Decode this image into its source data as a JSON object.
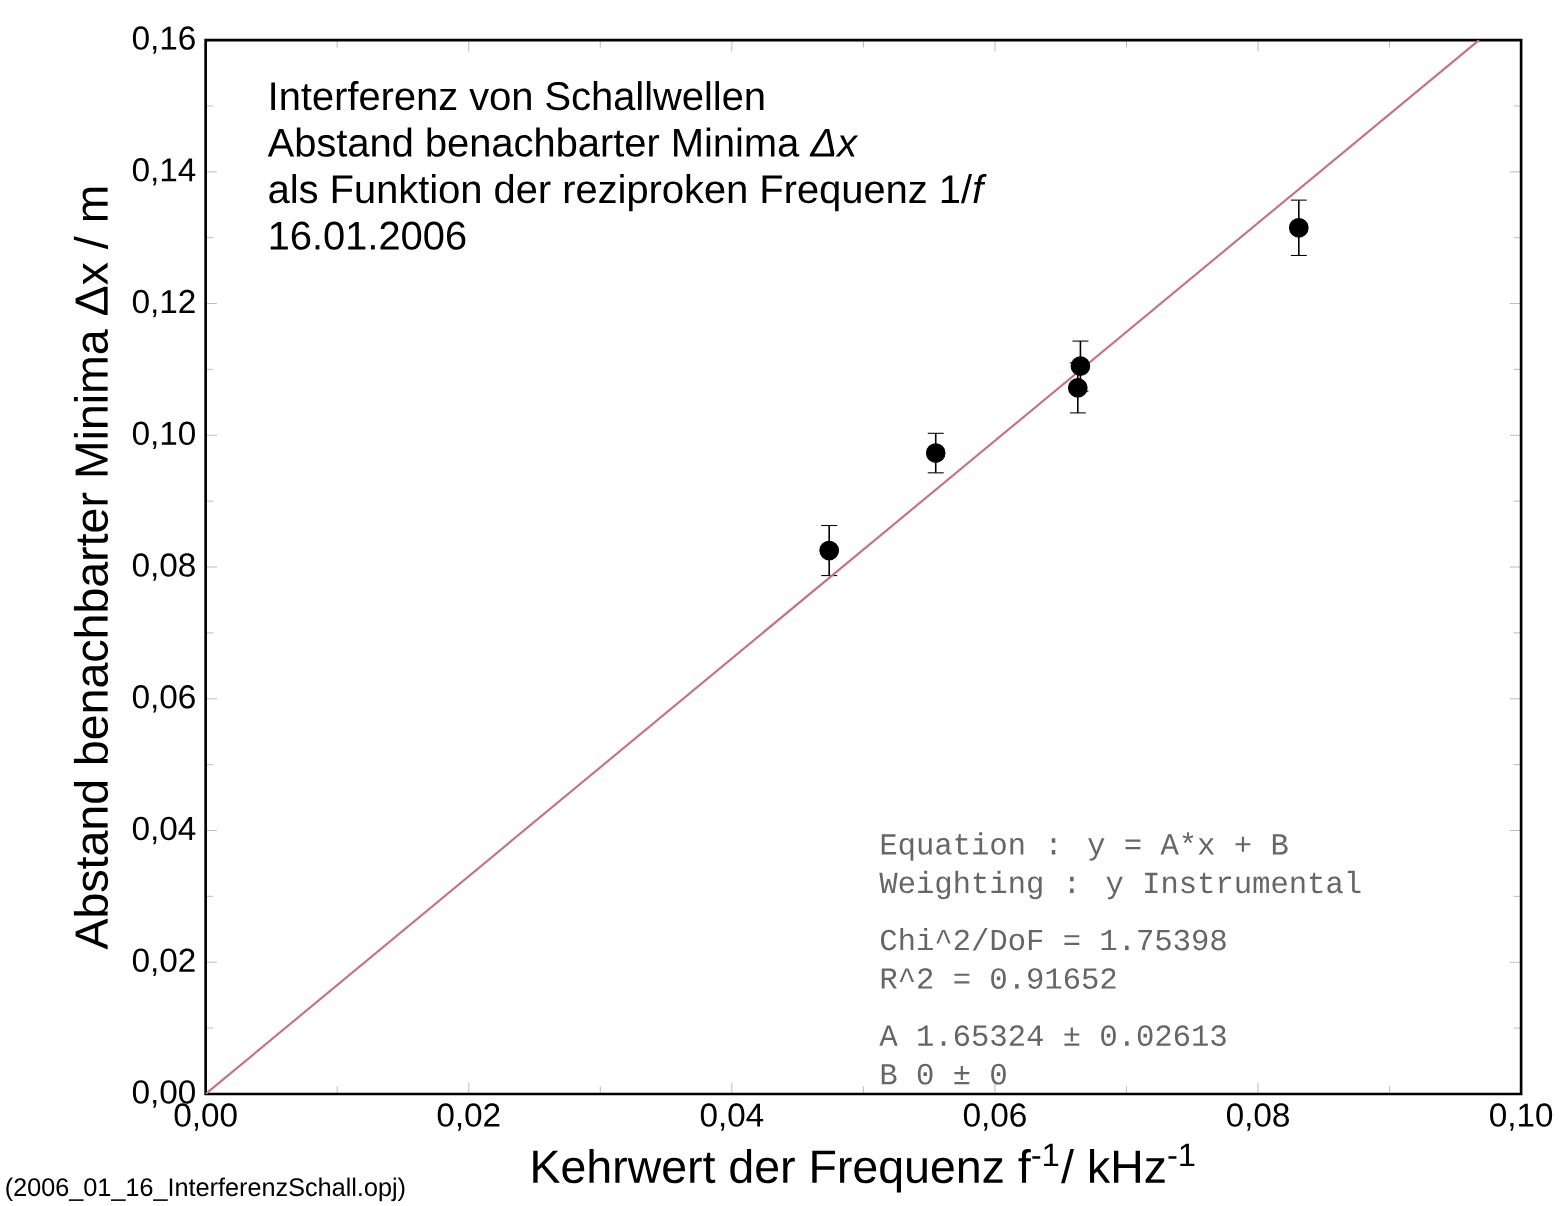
{
  "chart_data": {
    "type": "scatter",
    "xlabel": "Kehrwert der Frequenz  f$^{-1}$/ kHz$^{-1}$",
    "ylabel": "Abstand benachbarter Minima  Δx  / m",
    "series": [
      {
        "color": "#000000",
        "marker": "circle",
        "x": [
          0.0474,
          0.0555,
          0.0663,
          0.0665,
          0.0831
        ],
        "values": [
          0.0825,
          0.0973,
          0.1072,
          0.1105,
          0.1315
        ],
        "errors": [
          0.0038,
          0.003,
          0.0038,
          0.0038,
          0.0042
        ]
      },
      {
        "type": "line",
        "color": "#c87080",
        "marker": "none",
        "x": [
          0,
          0.0968
        ],
        "values": [
          0,
          0.16
        ]
      }
    ],
    "xlim": [
      0,
      0.1
    ],
    "ylim": [
      0,
      0.16
    ],
    "xticks": [
      {
        "value": 0,
        "label": "0,00"
      },
      {
        "value": 0.02,
        "label": "0,02"
      },
      {
        "value": 0.04,
        "label": "0,04"
      },
      {
        "value": 0.06,
        "label": "0,06"
      },
      {
        "value": 0.08,
        "label": "0,08"
      },
      {
        "value": 0.1,
        "label": "0,10"
      }
    ],
    "yticks": [
      {
        "value": 0,
        "label": "0,00"
      },
      {
        "value": 0.02,
        "label": "0,02"
      },
      {
        "value": 0.04,
        "label": "0,04"
      },
      {
        "value": 0.06,
        "label": "0,06"
      },
      {
        "value": 0.08,
        "label": "0,08"
      },
      {
        "value": 0.1,
        "label": "0,10"
      },
      {
        "value": 0.12,
        "label": "0,12"
      },
      {
        "value": 0.14,
        "label": "0,14"
      },
      {
        "value": 0.16,
        "label": "0,16"
      }
    ],
    "annotations": [
      "Interferenz von Schallwellen",
      "Abstand benachbarter Minima *Δx*",
      "als Funktion der reziproken Frequenz  1/*f*",
      "16.01.2006",
      "Equation  : y = A*x + B",
      "Weighting : y Instrumental",
      "Chi^2/DoF = 1.75398",
      "R^2       = 0.91652",
      "A       1.65324 ± 0.02613",
      "B       0       ± 0",
      "(2006_01_16_InterferenzSchall.opj)"
    ],
    "grid": false
  }
}
